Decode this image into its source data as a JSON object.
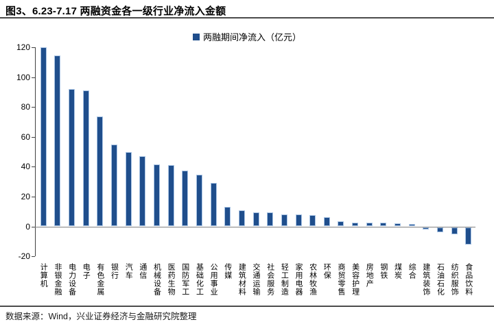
{
  "header": {
    "title": "图3、6.23-7.17 两融资金各一级行业净流入金额"
  },
  "legend": {
    "label": "两融期间净流入（亿元）",
    "marker_color": "#1F4E8C"
  },
  "footer": {
    "source": "数据来源：Wind，兴业证券经济与金融研究院整理"
  },
  "colors": {
    "bar_fill": "#1F4E8C",
    "bar_edge": "#A9C4E4",
    "axis_line": "#404040",
    "zero_line": "#808080",
    "rule_line": "#4A4A4A"
  },
  "chart_data": {
    "type": "bar",
    "title": "图3、6.23-7.17 两融资金各一级行业净流入金额",
    "legend_entries": [
      "两融期间净流入（亿元）"
    ],
    "legend_position": "top-center",
    "xlabel": "",
    "ylabel": "",
    "ylim": [
      -20,
      120
    ],
    "yticks": [
      120,
      100,
      80,
      60,
      40,
      20,
      0,
      -20
    ],
    "grid": false,
    "categories": [
      "计算机",
      "非银金融",
      "电力设备",
      "电子",
      "有色金属",
      "银行",
      "汽车",
      "通信",
      "机械设备",
      "医药生物",
      "国防军工",
      "基础化工",
      "公用事业",
      "传媒",
      "建筑材料",
      "交通运输",
      "社会服务",
      "轻工制造",
      "家用电器",
      "农林牧渔",
      "环保",
      "商贸零售",
      "美容护理",
      "房地产",
      "钢铁",
      "煤炭",
      "综合",
      "建筑装饰",
      "石油石化",
      "纺织服饰",
      "食品饮料"
    ],
    "values": [
      120,
      114.5,
      92,
      91,
      73.5,
      55,
      50,
      47,
      41.5,
      41,
      37.5,
      34.5,
      29,
      13,
      11,
      9.4,
      9.2,
      8.1,
      7.9,
      7.6,
      6.1,
      3.4,
      2.6,
      2.3,
      2.3,
      2.1,
      1.5,
      -1.7,
      -3.4,
      -4.6,
      -11.5
    ]
  }
}
